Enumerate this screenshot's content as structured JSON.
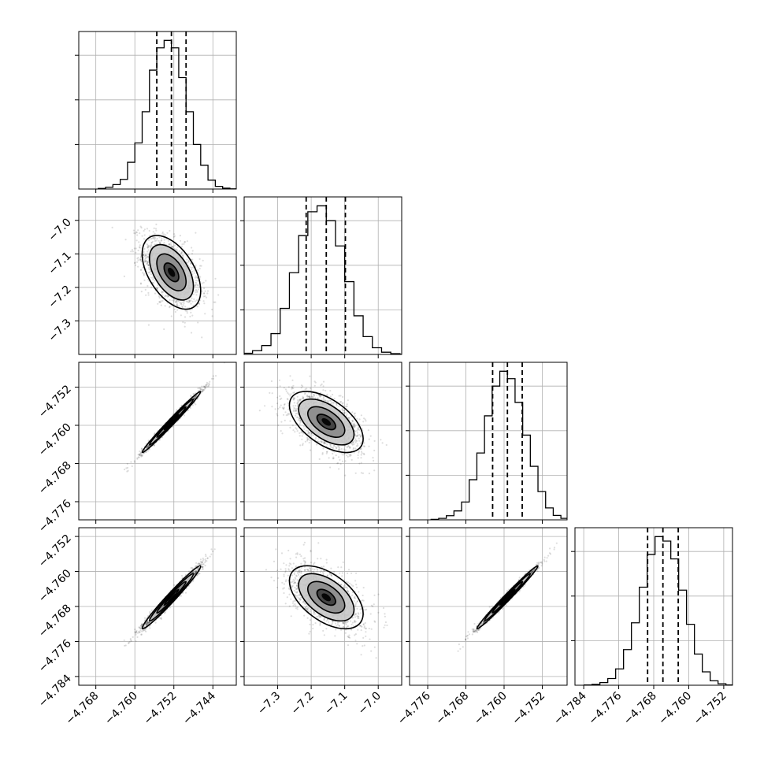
{
  "chart_data": {
    "type": "corner",
    "title": "",
    "parameters": [
      {
        "center": -4.7525,
        "sigma": 0.003,
        "quantiles": [
          -4.7555,
          -4.7525,
          -4.7495
        ],
        "range": [
          -4.7715,
          -4.7392
        ],
        "ticks": [
          "-4.768",
          "-4.760",
          "-4.752",
          "-4.744"
        ]
      },
      {
        "center": -7.155,
        "sigma": 0.055,
        "quantiles": [
          -7.215,
          -7.155,
          -7.098
        ],
        "range": [
          -7.4,
          -6.93
        ],
        "ticks": [
          "-7.3",
          "-7.2",
          "-7.1",
          "-7.0"
        ]
      },
      {
        "center": -4.7593,
        "sigma": 0.0032,
        "quantiles": [
          -4.7624,
          -4.7593,
          -4.7562
        ],
        "range": [
          -4.7798,
          -4.7468
        ],
        "ticks": [
          "-4.776",
          "-4.768",
          "-4.760",
          "-4.752"
        ]
      },
      {
        "center": -4.7659,
        "sigma": 0.0036,
        "quantiles": [
          -4.7694,
          -4.7659,
          -4.7624
        ],
        "range": [
          -4.786,
          -4.75
        ],
        "ticks": [
          "-4.784",
          "-4.776",
          "-4.768",
          "-4.760",
          "-4.752"
        ]
      }
    ],
    "correlations": [
      {
        "pair": [
          0,
          1
        ],
        "rho": -0.5
      },
      {
        "pair": [
          0,
          2
        ],
        "rho": 0.99
      },
      {
        "pair": [
          0,
          3
        ],
        "rho": 0.98
      },
      {
        "pair": [
          1,
          2
        ],
        "rho": -0.55
      },
      {
        "pair": [
          1,
          3
        ],
        "rho": -0.52
      },
      {
        "pair": [
          2,
          3
        ],
        "rho": 0.99
      }
    ],
    "histograms": [
      [
        0.004,
        0.012,
        0.03,
        0.065,
        0.18,
        0.31,
        0.52,
        0.8,
        0.95,
        1.0,
        0.95,
        0.75,
        0.52,
        0.3,
        0.16,
        0.06,
        0.018,
        0.006,
        0.001,
        0.0
      ],
      [
        0.002,
        0.008,
        0.025,
        0.06,
        0.14,
        0.31,
        0.55,
        0.8,
        0.96,
        1.0,
        0.9,
        0.73,
        0.49,
        0.26,
        0.12,
        0.045,
        0.015,
        0.005,
        0.001,
        0.0
      ],
      [
        0.003,
        0.01,
        0.028,
        0.06,
        0.12,
        0.27,
        0.45,
        0.7,
        0.9,
        1.0,
        0.95,
        0.79,
        0.57,
        0.36,
        0.19,
        0.08,
        0.03,
        0.01,
        0.002,
        0.0
      ],
      [
        0.002,
        0.006,
        0.018,
        0.045,
        0.11,
        0.24,
        0.42,
        0.66,
        0.88,
        1.0,
        0.97,
        0.85,
        0.64,
        0.41,
        0.21,
        0.09,
        0.03,
        0.01,
        0.002,
        0.0
      ]
    ],
    "hist_ticks": [
      0.3,
      0.6,
      0.9
    ],
    "contour_levels_sigma": [
      0.5,
      1.0,
      1.5,
      2.0
    ],
    "grid": true,
    "legend": "none",
    "xlabels": [
      "",
      "",
      "",
      ""
    ],
    "ylabels": [
      "",
      "",
      "",
      ""
    ]
  }
}
